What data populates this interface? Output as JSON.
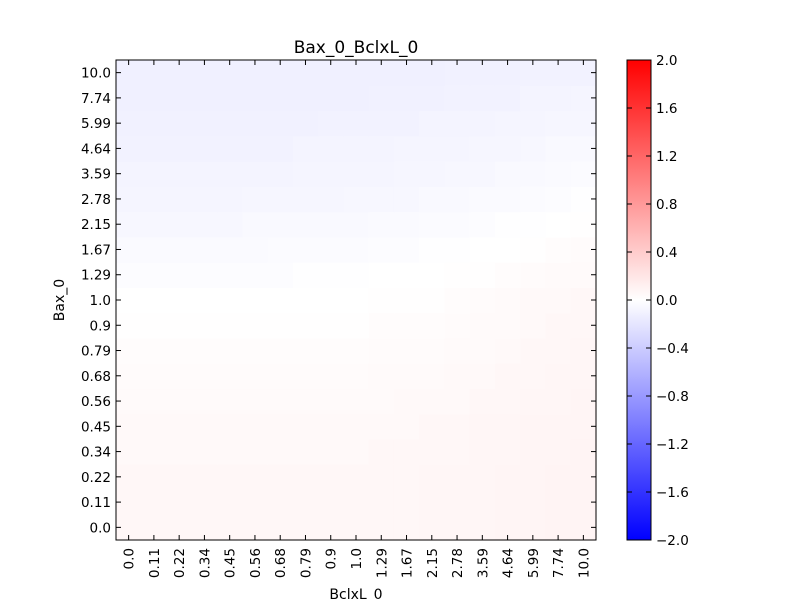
{
  "chart_data": {
    "type": "heatmap",
    "title": "Bax_0_BclxL_0",
    "xlabel": "BclxL_0",
    "ylabel": "Bax_0",
    "x_categories": [
      "0.0",
      "0.11",
      "0.22",
      "0.34",
      "0.45",
      "0.56",
      "0.68",
      "0.79",
      "0.9",
      "1.0",
      "1.29",
      "1.67",
      "2.15",
      "2.78",
      "3.59",
      "4.64",
      "5.99",
      "7.74",
      "10.0"
    ],
    "y_categories": [
      "0.0",
      "0.11",
      "0.22",
      "0.34",
      "0.45",
      "0.56",
      "0.68",
      "0.79",
      "0.9",
      "1.0",
      "1.29",
      "1.67",
      "2.15",
      "2.78",
      "3.59",
      "4.64",
      "5.99",
      "7.74",
      "10.0"
    ],
    "z": [
      [
        0.06,
        0.06,
        0.06,
        0.06,
        0.06,
        0.06,
        0.06,
        0.06,
        0.06,
        0.06,
        0.06,
        0.06,
        0.07,
        0.07,
        0.07,
        0.08,
        0.08,
        0.09,
        0.09
      ],
      [
        0.06,
        0.06,
        0.06,
        0.06,
        0.06,
        0.06,
        0.06,
        0.06,
        0.06,
        0.06,
        0.06,
        0.06,
        0.07,
        0.07,
        0.07,
        0.08,
        0.08,
        0.09,
        0.09
      ],
      [
        0.06,
        0.06,
        0.06,
        0.06,
        0.06,
        0.06,
        0.06,
        0.06,
        0.06,
        0.06,
        0.06,
        0.06,
        0.07,
        0.07,
        0.07,
        0.08,
        0.08,
        0.09,
        0.09
      ],
      [
        0.05,
        0.05,
        0.05,
        0.05,
        0.05,
        0.05,
        0.05,
        0.05,
        0.05,
        0.05,
        0.06,
        0.06,
        0.06,
        0.06,
        0.07,
        0.07,
        0.08,
        0.08,
        0.09
      ],
      [
        0.05,
        0.05,
        0.05,
        0.05,
        0.05,
        0.05,
        0.05,
        0.05,
        0.05,
        0.05,
        0.05,
        0.05,
        0.06,
        0.06,
        0.07,
        0.07,
        0.08,
        0.08,
        0.08
      ],
      [
        0.04,
        0.04,
        0.04,
        0.04,
        0.04,
        0.04,
        0.04,
        0.04,
        0.04,
        0.04,
        0.04,
        0.05,
        0.05,
        0.05,
        0.06,
        0.06,
        0.07,
        0.07,
        0.08
      ],
      [
        0.03,
        0.03,
        0.03,
        0.03,
        0.03,
        0.03,
        0.03,
        0.03,
        0.03,
        0.03,
        0.04,
        0.04,
        0.04,
        0.05,
        0.05,
        0.06,
        0.06,
        0.07,
        0.07
      ],
      [
        0.02,
        0.02,
        0.02,
        0.02,
        0.02,
        0.02,
        0.02,
        0.02,
        0.02,
        0.02,
        0.03,
        0.03,
        0.03,
        0.04,
        0.04,
        0.05,
        0.06,
        0.06,
        0.07
      ],
      [
        0.01,
        0.01,
        0.01,
        0.01,
        0.01,
        0.01,
        0.01,
        0.01,
        0.01,
        0.01,
        0.02,
        0.02,
        0.02,
        0.03,
        0.04,
        0.04,
        0.05,
        0.06,
        0.06
      ],
      [
        0.0,
        0.0,
        0.0,
        0.0,
        0.0,
        0.0,
        0.0,
        0.0,
        0.0,
        0.0,
        0.01,
        0.01,
        0.01,
        0.02,
        0.03,
        0.04,
        0.05,
        0.05,
        0.06
      ],
      [
        -0.02,
        -0.02,
        -0.02,
        -0.02,
        -0.02,
        -0.02,
        -0.02,
        -0.01,
        -0.01,
        -0.01,
        0.0,
        0.0,
        0.0,
        0.01,
        0.01,
        0.02,
        0.03,
        0.04,
        0.04
      ],
      [
        -0.04,
        -0.04,
        -0.04,
        -0.04,
        -0.04,
        -0.04,
        -0.03,
        -0.03,
        -0.03,
        -0.03,
        -0.02,
        -0.02,
        -0.01,
        -0.01,
        0.0,
        0.0,
        0.01,
        0.02,
        0.03
      ],
      [
        -0.06,
        -0.06,
        -0.06,
        -0.06,
        -0.06,
        -0.05,
        -0.05,
        -0.05,
        -0.05,
        -0.05,
        -0.04,
        -0.04,
        -0.03,
        -0.03,
        -0.02,
        -0.01,
        -0.01,
        0.0,
        0.01
      ],
      [
        -0.08,
        -0.08,
        -0.08,
        -0.08,
        -0.08,
        -0.07,
        -0.07,
        -0.07,
        -0.07,
        -0.06,
        -0.06,
        -0.06,
        -0.05,
        -0.05,
        -0.04,
        -0.04,
        -0.03,
        -0.02,
        -0.01
      ],
      [
        -0.09,
        -0.09,
        -0.09,
        -0.09,
        -0.09,
        -0.09,
        -0.09,
        -0.08,
        -0.08,
        -0.08,
        -0.08,
        -0.07,
        -0.07,
        -0.06,
        -0.06,
        -0.05,
        -0.05,
        -0.04,
        -0.03
      ],
      [
        -0.1,
        -0.1,
        -0.1,
        -0.1,
        -0.1,
        -0.1,
        -0.1,
        -0.09,
        -0.09,
        -0.09,
        -0.09,
        -0.08,
        -0.08,
        -0.08,
        -0.07,
        -0.07,
        -0.06,
        -0.05,
        -0.05
      ],
      [
        -0.11,
        -0.11,
        -0.11,
        -0.11,
        -0.11,
        -0.11,
        -0.11,
        -0.11,
        -0.1,
        -0.1,
        -0.1,
        -0.1,
        -0.09,
        -0.09,
        -0.09,
        -0.08,
        -0.08,
        -0.07,
        -0.07
      ],
      [
        -0.12,
        -0.12,
        -0.12,
        -0.12,
        -0.12,
        -0.12,
        -0.12,
        -0.12,
        -0.12,
        -0.12,
        -0.11,
        -0.11,
        -0.11,
        -0.1,
        -0.1,
        -0.1,
        -0.09,
        -0.09,
        -0.08
      ],
      [
        -0.12,
        -0.12,
        -0.12,
        -0.12,
        -0.12,
        -0.12,
        -0.12,
        -0.12,
        -0.12,
        -0.12,
        -0.12,
        -0.12,
        -0.12,
        -0.11,
        -0.11,
        -0.11,
        -0.1,
        -0.1,
        -0.1
      ]
    ],
    "zlim": [
      -2.0,
      2.0
    ],
    "colormap": "bwr",
    "colorbar_ticks": [
      "2.0",
      "1.6",
      "1.2",
      "0.8",
      "0.4",
      "0.0",
      "−0.4",
      "−0.8",
      "−1.2",
      "−1.6",
      "−2.0"
    ],
    "colors": {
      "low": "#0000ff",
      "mid": "#ffffff",
      "high": "#ff0000"
    }
  }
}
